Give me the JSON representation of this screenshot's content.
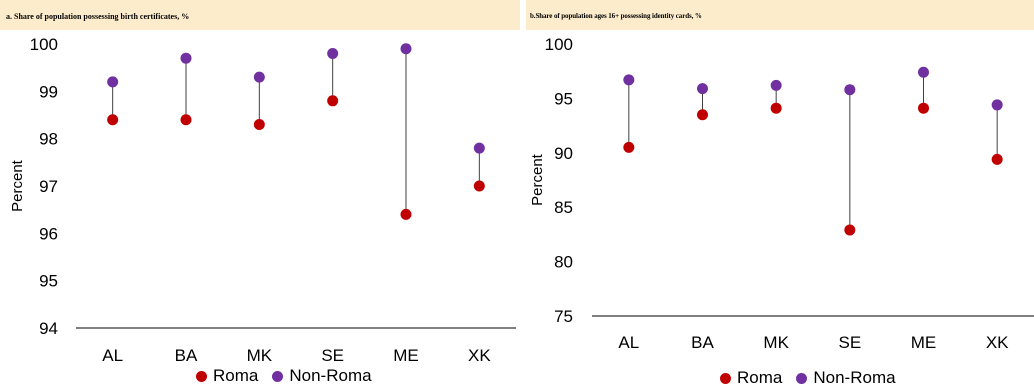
{
  "colors": {
    "roma": "#c00000",
    "non_roma": "#7030a0",
    "panel_bg": "#fdeccc",
    "axis": "#000000",
    "connector": "#404040"
  },
  "chart_data": [
    {
      "type": "scatter",
      "title": "a. Share of population possessing birth certificates, %",
      "xlabel": "",
      "ylabel": "Percent",
      "categories": [
        "AL",
        "BA",
        "MK",
        "SE",
        "ME",
        "XK"
      ],
      "ylim": [
        94,
        100
      ],
      "yticks": [
        94,
        95,
        96,
        97,
        98,
        99,
        100
      ],
      "series": [
        {
          "name": "Roma",
          "values": [
            98.4,
            98.4,
            98.3,
            98.8,
            96.4,
            97.0
          ]
        },
        {
          "name": "Non-Roma",
          "values": [
            99.2,
            99.7,
            99.3,
            99.8,
            99.9,
            97.8
          ]
        }
      ],
      "grid": false,
      "legend": "bottom"
    },
    {
      "type": "scatter",
      "title": "b.Share of population ages 16+ possessing identity cards, %",
      "xlabel": "",
      "ylabel": "Percent",
      "categories": [
        "AL",
        "BA",
        "MK",
        "SE",
        "ME",
        "XK"
      ],
      "ylim": [
        75,
        100
      ],
      "yticks": [
        75,
        80,
        85,
        90,
        95,
        100
      ],
      "series": [
        {
          "name": "Roma",
          "values": [
            90.5,
            93.5,
            94.1,
            82.9,
            94.1,
            89.4
          ]
        },
        {
          "name": "Non-Roma",
          "values": [
            96.7,
            95.9,
            96.2,
            95.8,
            97.4,
            94.4
          ]
        }
      ],
      "grid": false,
      "legend": "bottom"
    }
  ]
}
